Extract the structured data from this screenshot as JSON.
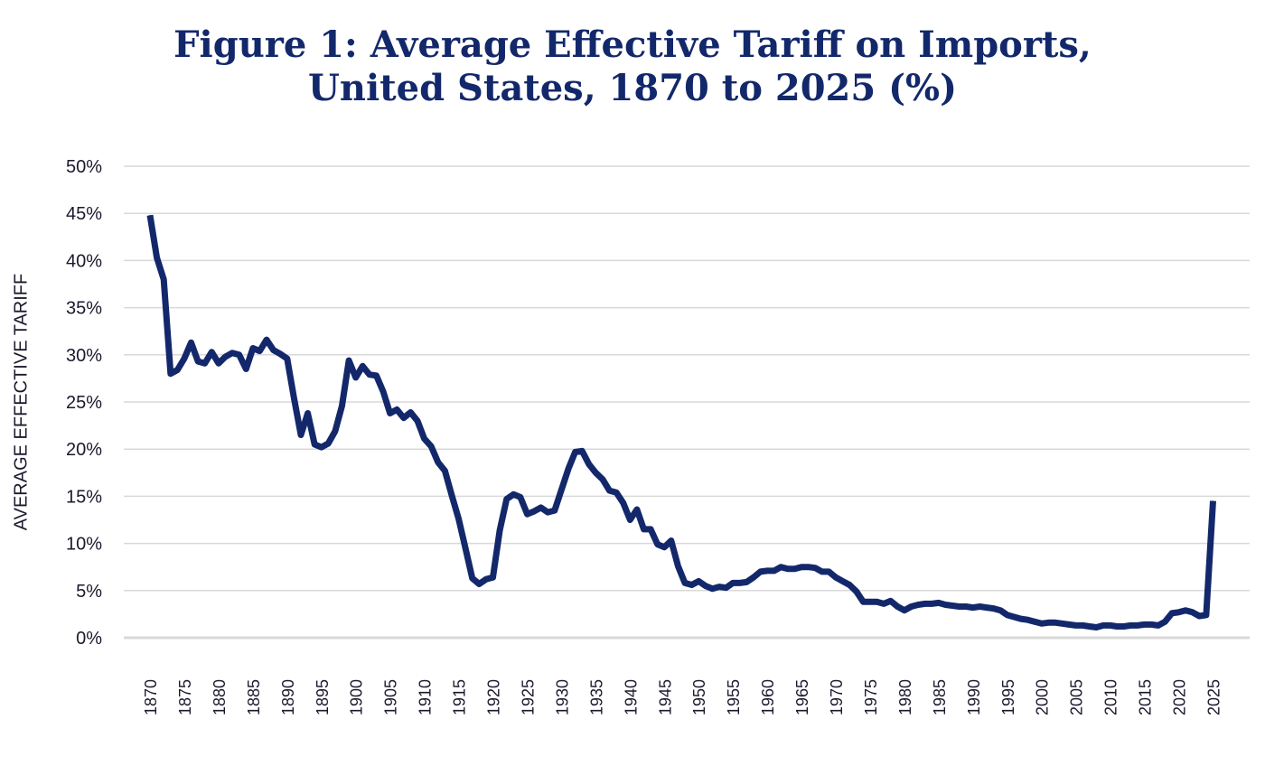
{
  "chart_data": {
    "type": "line",
    "title_lines": [
      "Figure 1: Average Effective Tariff on Imports,",
      "United States, 1870 to 2025 (%)"
    ],
    "ylabel": "AVERAGE EFFECTIVE TARIFF",
    "xlabel": "",
    "ylim": [
      0,
      50
    ],
    "yticks": [
      0,
      5,
      10,
      15,
      20,
      25,
      30,
      35,
      40,
      45,
      50
    ],
    "ytick_labels": [
      "0%",
      "5%",
      "10%",
      "15%",
      "20%",
      "25%",
      "30%",
      "35%",
      "40%",
      "45%",
      "50%"
    ],
    "xlim": [
      1868,
      2027
    ],
    "xticks": [
      1870,
      1875,
      1880,
      1885,
      1890,
      1895,
      1900,
      1905,
      1910,
      1915,
      1920,
      1925,
      1930,
      1935,
      1940,
      1945,
      1950,
      1955,
      1960,
      1965,
      1970,
      1975,
      1980,
      1985,
      1990,
      1995,
      2000,
      2005,
      2010,
      2015,
      2020,
      2025
    ],
    "xtick_labels": [
      "1870",
      "1875",
      "1880",
      "1885",
      "1890",
      "1895",
      "1900",
      "1905",
      "1910",
      "1915",
      "1920",
      "1925",
      "1930",
      "1935",
      "1940",
      "1945",
      "1950",
      "1955",
      "1960",
      "1965",
      "1970",
      "1975",
      "1980",
      "1985",
      "1990",
      "1995",
      "2000",
      "2005",
      "2010",
      "2015",
      "2020",
      "2025"
    ],
    "grid": true,
    "line_color": "#13286b",
    "grid_color": "#d9d9d9",
    "series": [
      {
        "x": [
          1870,
          1871,
          1872,
          1873,
          1874,
          1875,
          1876,
          1877,
          1878,
          1879,
          1880,
          1881,
          1882,
          1883,
          1884,
          1885,
          1886,
          1887,
          1888,
          1889,
          1890,
          1891,
          1892,
          1893,
          1894,
          1895,
          1896,
          1897,
          1898,
          1899,
          1900,
          1901,
          1902,
          1903,
          1904,
          1905,
          1906,
          1907,
          1908,
          1909,
          1910,
          1911,
          1912,
          1913,
          1914,
          1915,
          1916,
          1917,
          1918,
          1919,
          1920,
          1921,
          1922,
          1923,
          1924,
          1925,
          1926,
          1927,
          1928,
          1929,
          1930,
          1931,
          1932,
          1933,
          1934,
          1935,
          1936,
          1937,
          1938,
          1939,
          1940,
          1941,
          1942,
          1943,
          1944,
          1945,
          1946,
          1947,
          1948,
          1949,
          1950,
          1951,
          1952,
          1953,
          1954,
          1955,
          1956,
          1957,
          1958,
          1959,
          1960,
          1961,
          1962,
          1963,
          1964,
          1965,
          1966,
          1967,
          1968,
          1969,
          1970,
          1971,
          1972,
          1973,
          1974,
          1975,
          1976,
          1977,
          1978,
          1979,
          1980,
          1981,
          1982,
          1983,
          1984,
          1985,
          1986,
          1987,
          1988,
          1989,
          1990,
          1991,
          1992,
          1993,
          1994,
          1995,
          1996,
          1997,
          1998,
          1999,
          2000,
          2001,
          2002,
          2003,
          2004,
          2005,
          2006,
          2007,
          2008,
          2009,
          2010,
          2011,
          2012,
          2013,
          2014,
          2015,
          2016,
          2017,
          2018,
          2019,
          2020,
          2021,
          2022,
          2023,
          2024,
          2025
        ],
        "values": [
          44.8,
          40.3,
          38.0,
          28.0,
          28.4,
          29.6,
          31.3,
          29.3,
          29.1,
          30.3,
          29.1,
          29.8,
          30.2,
          30.0,
          28.5,
          30.7,
          30.4,
          31.6,
          30.5,
          30.1,
          29.6,
          25.4,
          21.5,
          23.8,
          20.5,
          20.2,
          20.6,
          21.9,
          24.6,
          29.4,
          27.6,
          28.8,
          27.9,
          27.8,
          26.1,
          23.8,
          24.2,
          23.3,
          23.9,
          23.0,
          21.1,
          20.3,
          18.6,
          17.7,
          15.1,
          12.6,
          9.5,
          6.3,
          5.7,
          6.2,
          6.4,
          11.4,
          14.7,
          15.2,
          14.9,
          13.1,
          13.4,
          13.8,
          13.3,
          13.5,
          15.7,
          17.9,
          19.7,
          19.8,
          18.4,
          17.5,
          16.8,
          15.6,
          15.4,
          14.3,
          12.5,
          13.6,
          11.5,
          11.5,
          9.9,
          9.6,
          10.3,
          7.6,
          5.8,
          5.6,
          6.0,
          5.5,
          5.2,
          5.4,
          5.3,
          5.8,
          5.8,
          5.9,
          6.4,
          7.0,
          7.1,
          7.1,
          7.5,
          7.3,
          7.3,
          7.5,
          7.5,
          7.4,
          7.0,
          7.0,
          6.4,
          6.0,
          5.6,
          4.9,
          3.8,
          3.8,
          3.8,
          3.6,
          3.9,
          3.3,
          2.9,
          3.3,
          3.5,
          3.6,
          3.6,
          3.7,
          3.5,
          3.4,
          3.3,
          3.3,
          3.2,
          3.3,
          3.2,
          3.1,
          2.9,
          2.4,
          2.2,
          2.0,
          1.9,
          1.7,
          1.5,
          1.6,
          1.6,
          1.5,
          1.4,
          1.3,
          1.3,
          1.2,
          1.1,
          1.3,
          1.3,
          1.2,
          1.2,
          1.3,
          1.3,
          1.4,
          1.4,
          1.3,
          1.7,
          2.6,
          2.7,
          2.9,
          2.7,
          2.3,
          2.4,
          14.5
        ]
      }
    ]
  }
}
